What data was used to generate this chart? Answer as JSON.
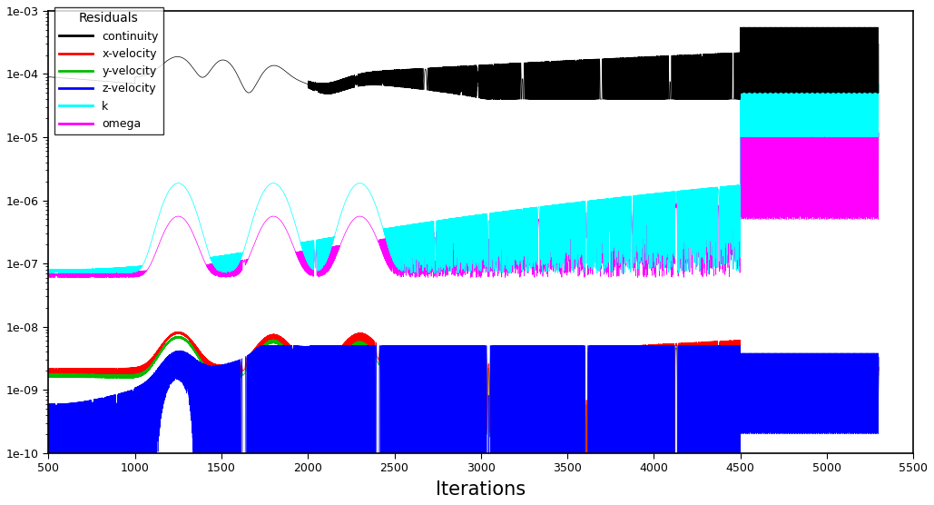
{
  "title": "Residuals",
  "xlabel": "Iterations",
  "xlim": [
    500,
    5500
  ],
  "ylim_log": [
    -10,
    -3
  ],
  "colors": {
    "continuity": "#000000",
    "x_velocity": "#ff0000",
    "y_velocity": "#00bb00",
    "z_velocity": "#0000ff",
    "k": "#00ffff",
    "omega": "#ff00ff"
  },
  "legend_labels": [
    "continuity",
    "x-velocity",
    "y-velocity",
    "z-velocity",
    "k",
    "omega"
  ],
  "background_color": "#ffffff",
  "xticks": [
    500,
    1000,
    1500,
    2000,
    2500,
    3000,
    3500,
    4000,
    4500,
    5000,
    5500
  ]
}
